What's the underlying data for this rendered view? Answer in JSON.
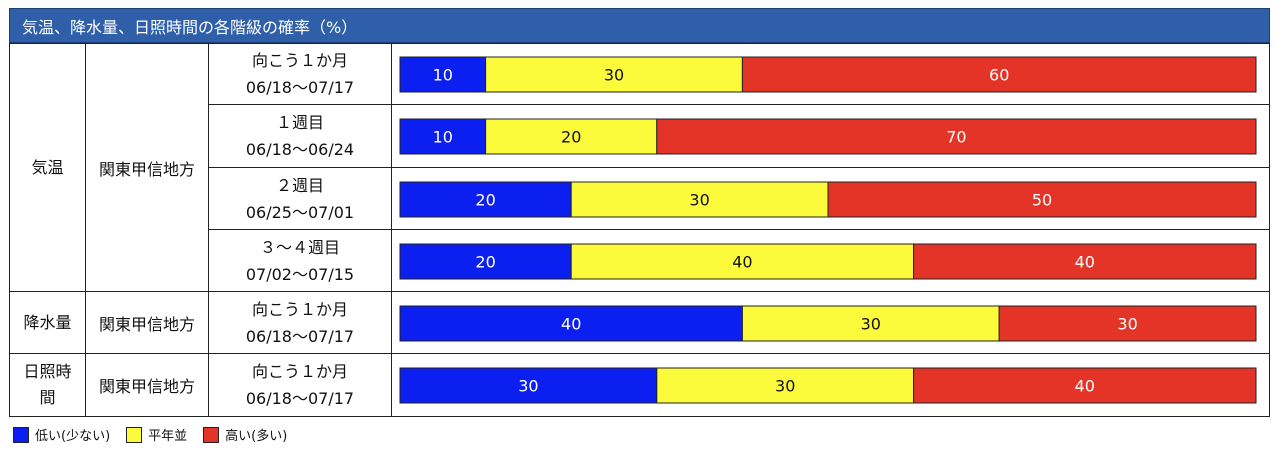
{
  "title": "気温、降水量、日照時間の各階級の確率（%）",
  "colors": {
    "low": "#0a1ff0",
    "normal": "#fbfb3c",
    "high": "#e33427"
  },
  "legend": [
    {
      "key": "low",
      "label": "低い(少ない)"
    },
    {
      "key": "normal",
      "label": "平年並"
    },
    {
      "key": "high",
      "label": "高い(多い)"
    }
  ],
  "groups": [
    {
      "element": "気温",
      "region": "関東甲信地方"
    },
    {
      "element": "降水量",
      "region": "関東甲信地方"
    },
    {
      "element": "日照時\n間",
      "region": "関東甲信地方"
    }
  ],
  "chart_data": {
    "type": "bar",
    "stacked": true,
    "orientation": "horizontal",
    "title": "気温、降水量、日照時間の各階級の確率（%）",
    "series_labels": [
      "低い(少ない)",
      "平年並",
      "高い(多い)"
    ],
    "rows": [
      {
        "element": "気温",
        "region": "関東甲信地方",
        "period": "向こう１か月",
        "dates": "06/18〜07/17",
        "values": [
          10,
          30,
          60
        ]
      },
      {
        "element": "気温",
        "region": "関東甲信地方",
        "period": "１週目",
        "dates": "06/18〜06/24",
        "values": [
          10,
          20,
          70
        ]
      },
      {
        "element": "気温",
        "region": "関東甲信地方",
        "period": "２週目",
        "dates": "06/25〜07/01",
        "values": [
          20,
          30,
          50
        ]
      },
      {
        "element": "気温",
        "region": "関東甲信地方",
        "period": "３〜４週目",
        "dates": "07/02〜07/15",
        "values": [
          20,
          40,
          40
        ]
      },
      {
        "element": "降水量",
        "region": "関東甲信地方",
        "period": "向こう１か月",
        "dates": "06/18〜07/17",
        "values": [
          40,
          30,
          30
        ]
      },
      {
        "element": "日照時間",
        "region": "関東甲信地方",
        "period": "向こう１か月",
        "dates": "06/18〜07/17",
        "values": [
          30,
          30,
          40
        ]
      }
    ]
  }
}
